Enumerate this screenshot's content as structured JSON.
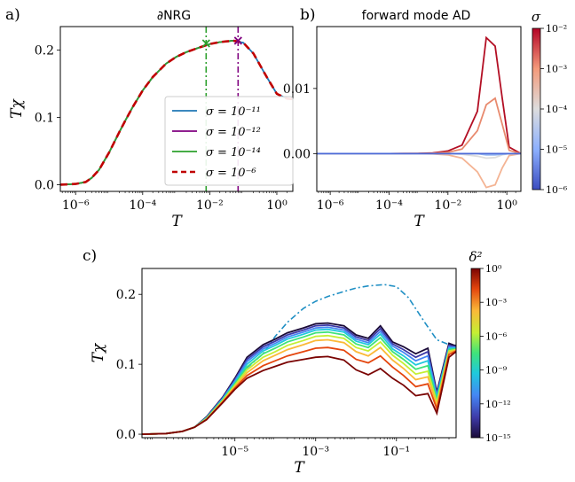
{
  "panels": {
    "a": {
      "label": "a)",
      "title": "∂NRG"
    },
    "b": {
      "label": "b)",
      "title": "forward mode AD"
    },
    "c": {
      "label": "c)"
    }
  },
  "chart_data": [
    {
      "id": "a",
      "type": "line",
      "title": "∂NRG",
      "xlabel": "T",
      "ylabel": "Tχ",
      "xscale": "log",
      "xlim": [
        3.5e-07,
        3
      ],
      "ylim": [
        -0.01,
        0.235
      ],
      "xticks": [
        {
          "v": 1e-06,
          "label": "10⁻⁶"
        },
        {
          "v": 0.0001,
          "label": "10⁻⁴"
        },
        {
          "v": 0.01,
          "label": "10⁻²"
        },
        {
          "v": 1,
          "label": "10⁰"
        }
      ],
      "yticks": [
        {
          "v": 0,
          "label": "0.0"
        },
        {
          "v": 0.1,
          "label": "0.1"
        },
        {
          "v": 0.2,
          "label": "0.2"
        }
      ],
      "x": [
        3.5e-07,
        1e-06,
        2e-06,
        3e-06,
        5e-06,
        1e-05,
        2e-05,
        3e-05,
        5e-05,
        0.0001,
        0.0002,
        0.0005,
        0.001,
        0.002,
        0.005,
        0.01,
        0.02,
        0.05,
        0.1,
        0.2,
        0.5,
        1,
        2,
        3
      ],
      "series": [
        {
          "name": "σ = 10⁻¹¹",
          "color": "#1f77b4",
          "style": "solid",
          "y": [
            0,
            0.001,
            0.004,
            0.01,
            0.022,
            0.048,
            0.078,
            0.095,
            0.115,
            0.14,
            0.16,
            0.18,
            0.19,
            0.197,
            0.204,
            0.209,
            0.212,
            0.214,
            0.211,
            0.195,
            0.16,
            0.135,
            0.128,
            0.127
          ]
        },
        {
          "name": "σ = 10⁻¹²",
          "color": "#800080",
          "style": "solid",
          "y": [
            0,
            0.001,
            0.004,
            0.01,
            0.022,
            0.048,
            0.078,
            0.095,
            0.115,
            0.14,
            0.16,
            0.18,
            0.19,
            0.197,
            0.204,
            0.209,
            0.212,
            0.214,
            null,
            null,
            null,
            null,
            null,
            null
          ]
        },
        {
          "name": "σ = 10⁻¹⁴",
          "color": "#2ca02c",
          "style": "solid",
          "y": [
            0,
            0.001,
            0.004,
            0.01,
            0.022,
            0.048,
            0.078,
            0.095,
            0.115,
            0.14,
            0.16,
            0.18,
            0.19,
            0.197,
            0.204,
            0.209,
            0.212,
            0.214,
            null,
            null,
            null,
            null,
            null,
            null
          ]
        },
        {
          "name": "σ = 10⁻⁶",
          "color": "#c00000",
          "style": "dashed",
          "y": [
            0,
            0.001,
            0.004,
            0.01,
            0.022,
            0.048,
            0.078,
            0.095,
            0.115,
            0.14,
            0.16,
            0.18,
            0.19,
            0.197,
            0.204,
            0.209,
            0.212,
            0.214,
            0.211,
            0.195,
            0.16,
            0.135,
            0.128,
            0.127
          ]
        }
      ],
      "vlines": [
        {
          "x": 0.0078,
          "color": "#2ca02c"
        },
        {
          "x": 0.07,
          "color": "#800080"
        }
      ],
      "markers": [
        {
          "x": 0.0078,
          "y": 0.21,
          "color": "#2ca02c"
        },
        {
          "x": 0.07,
          "y": 0.214,
          "color": "#800080"
        }
      ],
      "legend": "lower-right"
    },
    {
      "id": "b",
      "type": "line",
      "title": "forward mode AD",
      "xlabel": "T",
      "ylabel": "",
      "xscale": "log",
      "xlim": [
        3.5e-07,
        3
      ],
      "ylim": [
        -0.0058,
        0.0195
      ],
      "xticks": [
        {
          "v": 1e-06,
          "label": "10⁻⁶"
        },
        {
          "v": 0.0001,
          "label": "10⁻⁴"
        },
        {
          "v": 0.01,
          "label": "10⁻²"
        },
        {
          "v": 1,
          "label": "10⁰"
        }
      ],
      "yticks": [
        {
          "v": 0,
          "label": "0.00"
        },
        {
          "v": 0.01,
          "label": "0.01"
        }
      ],
      "x": [
        3.5e-07,
        1e-06,
        1e-05,
        0.0001,
        0.001,
        0.003,
        0.01,
        0.03,
        0.1,
        0.2,
        0.4,
        0.7,
        1.2,
        3
      ],
      "series": [
        {
          "name": "σ = 10⁻²",
          "color": "#b30f24",
          "y": [
            0,
            0,
            0,
            0,
            3e-05,
            0.0001,
            0.0004,
            0.0013,
            0.0065,
            0.0178,
            0.0165,
            0.0085,
            0.001,
            0
          ]
        },
        {
          "name": "σ = 10⁻³",
          "color": "#e88a6e",
          "y": [
            0,
            0,
            0,
            0,
            2e-05,
            5e-05,
            0.0002,
            0.0007,
            0.0035,
            0.0075,
            0.0085,
            0.0045,
            0.0005,
            0
          ]
        },
        {
          "name": "σ = 10⁻³",
          "color": "#f4b494",
          "y": [
            0,
            0,
            0,
            0,
            -2e-05,
            -5e-05,
            -0.0002,
            -0.0007,
            -0.0028,
            -0.0052,
            -0.0048,
            -0.0022,
            -0.0003,
            0
          ]
        },
        {
          "name": "σ = 10⁻⁴",
          "color": "#dddddd",
          "y": [
            0,
            0,
            0,
            0,
            0,
            0,
            -3e-05,
            -0.0001,
            -0.0004,
            -0.0007,
            -0.0006,
            -0.0002,
            0,
            0
          ]
        },
        {
          "name": "σ = 10⁻⁵",
          "color": "#9bbcf2",
          "y": [
            0,
            0,
            0,
            0,
            0,
            0,
            0,
            0,
            0,
            -0.0002,
            -0.0002,
            -0.0001,
            0,
            0
          ]
        },
        {
          "name": "σ = 10⁻⁶",
          "color": "#4d6bd8",
          "y": [
            0,
            0,
            0,
            0,
            0,
            0,
            0,
            0,
            0,
            0,
            0,
            0,
            0,
            0
          ]
        }
      ],
      "colorbar": {
        "label": "σ",
        "scale": "log",
        "ticks": [
          {
            "v": -2,
            "label": "10⁻²"
          },
          {
            "v": -3,
            "label": "10⁻³"
          },
          {
            "v": -4,
            "label": "10⁻⁴"
          },
          {
            "v": -5,
            "label": "10⁻⁵"
          },
          {
            "v": -6,
            "label": "10⁻⁶"
          }
        ],
        "range": [
          -6,
          -2
        ],
        "colormap": "coolwarm"
      }
    },
    {
      "id": "c",
      "type": "line",
      "xlabel": "T",
      "ylabel": "Tχ",
      "xscale": "log",
      "xlim": [
        5e-08,
        3
      ],
      "ylim": [
        -0.005,
        0.237
      ],
      "xticks": [
        {
          "v": 1e-05,
          "label": "10⁻⁵"
        },
        {
          "v": 0.001,
          "label": "10⁻³"
        },
        {
          "v": 0.1,
          "label": "10⁻¹"
        }
      ],
      "yticks": [
        {
          "v": 0,
          "label": "0.0"
        },
        {
          "v": 0.1,
          "label": "0.1"
        },
        {
          "v": 0.2,
          "label": "0.2"
        }
      ],
      "x": [
        5e-08,
        2e-07,
        5e-07,
        1e-06,
        2e-06,
        5e-06,
        1e-05,
        2e-05,
        5e-05,
        0.0001,
        0.0002,
        0.0005,
        0.001,
        0.002,
        0.005,
        0.01,
        0.02,
        0.04,
        0.08,
        0.15,
        0.3,
        0.6,
        1,
        2,
        3
      ],
      "reference": {
        "color": "#1f8fc4",
        "style": "dashdot",
        "x": [
          5e-08,
          2e-07,
          5e-07,
          1e-06,
          2e-06,
          5e-06,
          1e-05,
          2e-05,
          5e-05,
          0.0001,
          0.0002,
          0.0005,
          0.001,
          0.002,
          0.005,
          0.01,
          0.02,
          0.05,
          0.1,
          0.2,
          0.5,
          1,
          2,
          3
        ],
        "y": [
          0,
          0.001,
          0.004,
          0.01,
          0.022,
          0.048,
          0.078,
          0.095,
          0.115,
          0.14,
          0.16,
          0.18,
          0.19,
          0.197,
          0.204,
          0.209,
          0.212,
          0.214,
          0.211,
          0.195,
          0.16,
          0.135,
          0.128,
          0.127
        ]
      },
      "series": [
        {
          "name": "δ² = 10⁻¹⁵",
          "y": [
            0,
            0.001,
            0.004,
            0.01,
            0.025,
            0.053,
            0.08,
            0.11,
            0.128,
            0.136,
            0.145,
            0.152,
            0.158,
            0.159,
            0.155,
            0.142,
            0.137,
            0.155,
            0.132,
            0.125,
            0.115,
            0.123,
            0.06,
            0.13,
            0.126
          ]
        },
        {
          "name": "δ² = 10⁻¹³",
          "y": [
            0,
            0.001,
            0.004,
            0.01,
            0.024,
            0.052,
            0.078,
            0.107,
            0.125,
            0.133,
            0.142,
            0.149,
            0.155,
            0.156,
            0.152,
            0.139,
            0.134,
            0.151,
            0.129,
            0.121,
            0.11,
            0.118,
            0.057,
            0.127,
            0.125
          ]
        },
        {
          "name": "δ² = 10⁻¹¹",
          "y": [
            0,
            0.001,
            0.004,
            0.01,
            0.024,
            0.051,
            0.076,
            0.104,
            0.122,
            0.13,
            0.139,
            0.146,
            0.152,
            0.153,
            0.149,
            0.136,
            0.131,
            0.147,
            0.126,
            0.117,
            0.105,
            0.112,
            0.055,
            0.125,
            0.124
          ]
        },
        {
          "name": "δ² = 10⁻⁹",
          "y": [
            0,
            0.001,
            0.004,
            0.01,
            0.023,
            0.05,
            0.074,
            0.1,
            0.119,
            0.127,
            0.136,
            0.143,
            0.149,
            0.15,
            0.146,
            0.133,
            0.128,
            0.143,
            0.122,
            0.112,
            0.099,
            0.105,
            0.052,
            0.123,
            0.123
          ]
        },
        {
          "name": "δ² = 10⁻⁷",
          "y": [
            0,
            0.001,
            0.004,
            0.01,
            0.023,
            0.049,
            0.072,
            0.096,
            0.115,
            0.123,
            0.132,
            0.139,
            0.145,
            0.146,
            0.142,
            0.129,
            0.124,
            0.138,
            0.118,
            0.107,
            0.093,
            0.098,
            0.049,
            0.121,
            0.122
          ]
        },
        {
          "name": "δ² = 10⁻⁵",
          "y": [
            0,
            0.001,
            0.004,
            0.01,
            0.022,
            0.048,
            0.07,
            0.092,
            0.11,
            0.118,
            0.127,
            0.134,
            0.14,
            0.141,
            0.137,
            0.124,
            0.119,
            0.132,
            0.113,
            0.101,
            0.086,
            0.09,
            0.045,
            0.119,
            0.121
          ]
        },
        {
          "name": "δ² = 10⁻³",
          "y": [
            0,
            0.001,
            0.004,
            0.01,
            0.022,
            0.047,
            0.068,
            0.088,
            0.105,
            0.113,
            0.121,
            0.128,
            0.134,
            0.135,
            0.131,
            0.118,
            0.112,
            0.124,
            0.106,
            0.094,
            0.078,
            0.082,
            0.041,
            0.117,
            0.12
          ]
        },
        {
          "name": "δ² = 10⁻¹",
          "y": [
            0,
            0.001,
            0.004,
            0.01,
            0.021,
            0.046,
            0.066,
            0.084,
            0.098,
            0.105,
            0.112,
            0.118,
            0.123,
            0.124,
            0.12,
            0.107,
            0.102,
            0.112,
            0.096,
            0.084,
            0.068,
            0.072,
            0.036,
            0.114,
            0.119
          ]
        },
        {
          "name": "δ² = 10⁰",
          "y": [
            0,
            0.001,
            0.004,
            0.01,
            0.021,
            0.045,
            0.064,
            0.08,
            0.091,
            0.097,
            0.103,
            0.107,
            0.11,
            0.111,
            0.106,
            0.092,
            0.085,
            0.094,
            0.08,
            0.07,
            0.055,
            0.058,
            0.03,
            0.11,
            0.118
          ]
        }
      ],
      "colorbar": {
        "label": "δ²",
        "scale": "log",
        "ticks": [
          {
            "v": 0,
            "label": "10⁰"
          },
          {
            "v": -3,
            "label": "10⁻³"
          },
          {
            "v": -6,
            "label": "10⁻⁶"
          },
          {
            "v": -9,
            "label": "10⁻⁹"
          },
          {
            "v": -12,
            "label": "10⁻¹²"
          },
          {
            "v": -15,
            "label": "10⁻¹⁵"
          }
        ],
        "range": [
          -15,
          0
        ],
        "colormap": "turbo"
      }
    }
  ]
}
